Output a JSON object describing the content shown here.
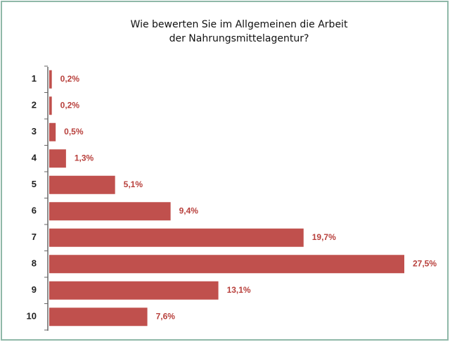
{
  "chart_data": {
    "type": "bar",
    "orientation": "horizontal",
    "title": [
      "Wie bewerten Sie im Allgemeinen die Arbeit",
      "der Nahrungsmittelagentur?"
    ],
    "categories": [
      "1",
      "2",
      "3",
      "4",
      "5",
      "6",
      "7",
      "8",
      "9",
      "10"
    ],
    "values": [
      0.2,
      0.2,
      0.5,
      1.3,
      5.1,
      9.4,
      19.7,
      27.5,
      13.1,
      7.6
    ],
    "value_labels": [
      "0,2%",
      "0,2%",
      "0,5%",
      "1,3%",
      "5,1%",
      "9,4%",
      "19,7%",
      "27,5%",
      "13,1%",
      "7,6%"
    ],
    "color": "#c0504d"
  }
}
